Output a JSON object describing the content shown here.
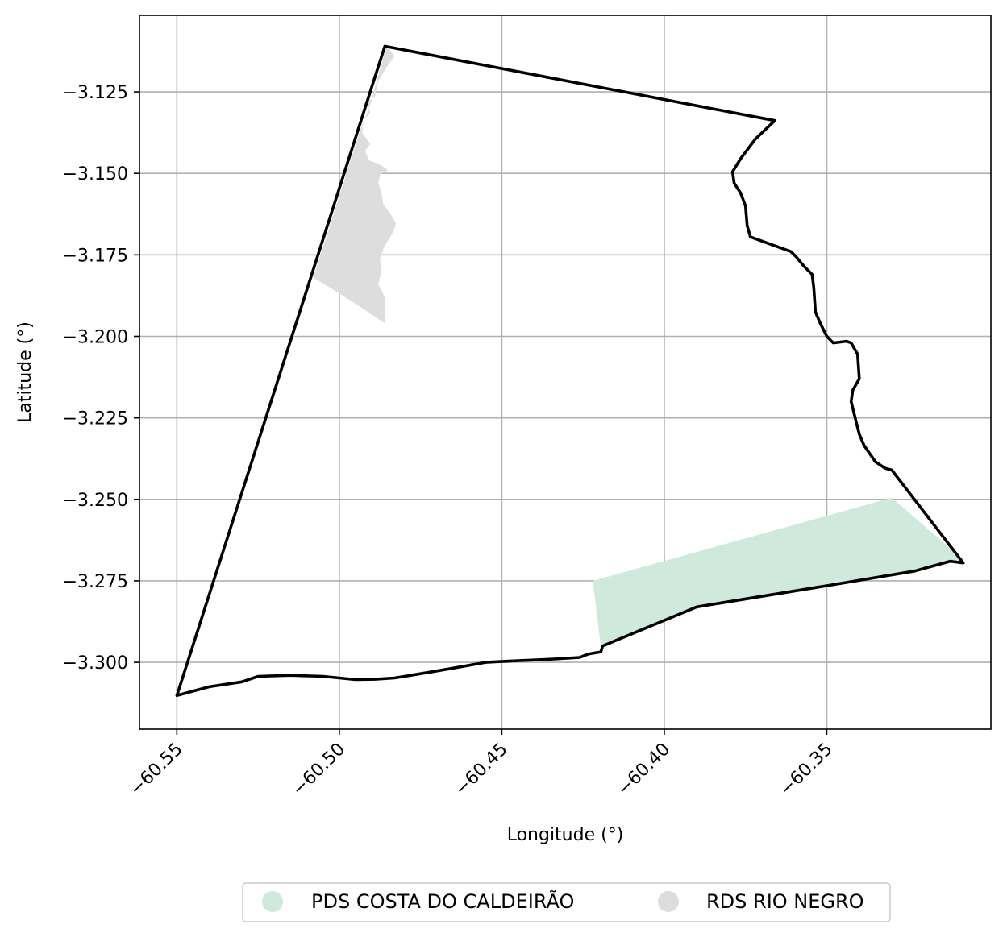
{
  "map": {
    "xlabel": "Longitude (°)",
    "ylabel": "Latitude (°)",
    "xlim": [
      -60.5615,
      -60.2995
    ],
    "ylim": [
      -3.3205,
      -3.1015
    ],
    "grid": true,
    "x_ticks": [
      -60.55,
      -60.5,
      -60.45,
      -60.4,
      -60.35
    ],
    "x_tick_labels": [
      "−60.55",
      "−60.50",
      "−60.45",
      "−60.40",
      "−60.35"
    ],
    "y_ticks": [
      -3.125,
      -3.15,
      -3.175,
      -3.2,
      -3.225,
      -3.25,
      -3.275,
      -3.3
    ],
    "y_tick_labels": [
      "−3.125",
      "−3.150",
      "−3.175",
      "−3.200",
      "−3.225",
      "−3.250",
      "−3.275",
      "−3.300"
    ],
    "legend": {
      "placement": "bottom-center",
      "entries": [
        {
          "label": "PDS COSTA DO CALDEIRÃO",
          "color": "#cfeadd"
        },
        {
          "label": "RDS RIO NEGRO",
          "color": "#dddddd"
        }
      ]
    },
    "layers": [
      {
        "name": "RDS RIO NEGRO",
        "kind": "fill",
        "color": "#dddddd",
        "coords": [
          [
            -60.4855,
            -3.1108
          ],
          [
            -60.483,
            -3.114
          ],
          [
            -60.4855,
            -3.1175
          ],
          [
            -60.488,
            -3.1215
          ],
          [
            -60.489,
            -3.1265
          ],
          [
            -60.4915,
            -3.128
          ],
          [
            -60.4905,
            -3.1315
          ],
          [
            -60.4925,
            -3.1335
          ],
          [
            -60.493,
            -3.1375
          ],
          [
            -60.4905,
            -3.141
          ],
          [
            -60.492,
            -3.143
          ],
          [
            -60.491,
            -3.146
          ],
          [
            -60.488,
            -3.147
          ],
          [
            -60.485,
            -3.149
          ],
          [
            -60.4875,
            -3.1505
          ],
          [
            -60.488,
            -3.153
          ],
          [
            -60.487,
            -3.156
          ],
          [
            -60.4865,
            -3.1595
          ],
          [
            -60.4845,
            -3.162
          ],
          [
            -60.4825,
            -3.1655
          ],
          [
            -60.484,
            -3.169
          ],
          [
            -60.486,
            -3.172
          ],
          [
            -60.4875,
            -3.176
          ],
          [
            -60.487,
            -3.18
          ],
          [
            -60.488,
            -3.184
          ],
          [
            -60.486,
            -3.188
          ],
          [
            -60.486,
            -3.196
          ],
          [
            -60.495,
            -3.19
          ],
          [
            -60.503,
            -3.185
          ],
          [
            -60.508,
            -3.182
          ],
          [
            -60.4935,
            -3.1365
          ],
          [
            -60.4905,
            -3.129
          ]
        ]
      },
      {
        "name": "PDS COSTA DO CALDEIRÃO",
        "kind": "fill",
        "color": "#cfeadd",
        "coords": [
          [
            -60.422,
            -3.275
          ],
          [
            -60.33,
            -3.2495
          ],
          [
            -60.308,
            -3.2685
          ],
          [
            -60.323,
            -3.272
          ],
          [
            -60.39,
            -3.283
          ],
          [
            -60.4195,
            -3.2955
          ]
        ]
      },
      {
        "name": "boundary",
        "kind": "line",
        "color": "#000000",
        "coords": [
          [
            -60.486,
            -3.111
          ],
          [
            -60.366,
            -3.1338
          ],
          [
            -60.372,
            -3.1395
          ],
          [
            -60.3765,
            -3.1455
          ],
          [
            -60.379,
            -3.1495
          ],
          [
            -60.3785,
            -3.153
          ],
          [
            -60.3765,
            -3.156
          ],
          [
            -60.375,
            -3.16
          ],
          [
            -60.3745,
            -3.166
          ],
          [
            -60.3735,
            -3.1695
          ],
          [
            -60.361,
            -3.174
          ],
          [
            -60.3595,
            -3.1755
          ],
          [
            -60.357,
            -3.1785
          ],
          [
            -60.3545,
            -3.181
          ],
          [
            -60.354,
            -3.185
          ],
          [
            -60.3535,
            -3.1925
          ],
          [
            -60.352,
            -3.196
          ],
          [
            -60.35,
            -3.2
          ],
          [
            -60.348,
            -3.202
          ],
          [
            -60.344,
            -3.2015
          ],
          [
            -60.3425,
            -3.202
          ],
          [
            -60.3405,
            -3.2055
          ],
          [
            -60.34,
            -3.213
          ],
          [
            -60.342,
            -3.2165
          ],
          [
            -60.3425,
            -3.22
          ],
          [
            -60.341,
            -3.226
          ],
          [
            -60.34,
            -3.23
          ],
          [
            -60.3385,
            -3.2335
          ],
          [
            -60.335,
            -3.2385
          ],
          [
            -60.332,
            -3.2405
          ],
          [
            -60.33,
            -3.241
          ],
          [
            -60.308,
            -3.2695
          ],
          [
            -60.312,
            -3.269
          ],
          [
            -60.323,
            -3.272
          ],
          [
            -60.35,
            -3.2765
          ],
          [
            -60.39,
            -3.283
          ],
          [
            -60.419,
            -3.295
          ],
          [
            -60.4195,
            -3.2968
          ],
          [
            -60.4235,
            -3.2975
          ],
          [
            -60.426,
            -3.2985
          ],
          [
            -60.434,
            -3.299
          ],
          [
            -60.44,
            -3.2993
          ],
          [
            -60.445,
            -3.2995
          ],
          [
            -60.455,
            -3.3
          ],
          [
            -60.465,
            -3.3018
          ],
          [
            -60.472,
            -3.303
          ],
          [
            -60.478,
            -3.304
          ],
          [
            -60.483,
            -3.3048
          ],
          [
            -60.489,
            -3.3052
          ],
          [
            -60.495,
            -3.3053
          ],
          [
            -60.505,
            -3.3043
          ],
          [
            -60.515,
            -3.304
          ],
          [
            -60.525,
            -3.3043
          ],
          [
            -60.53,
            -3.306
          ],
          [
            -60.54,
            -3.3075
          ],
          [
            -60.55,
            -3.3102
          ],
          [
            -60.486,
            -3.111
          ]
        ]
      }
    ]
  }
}
